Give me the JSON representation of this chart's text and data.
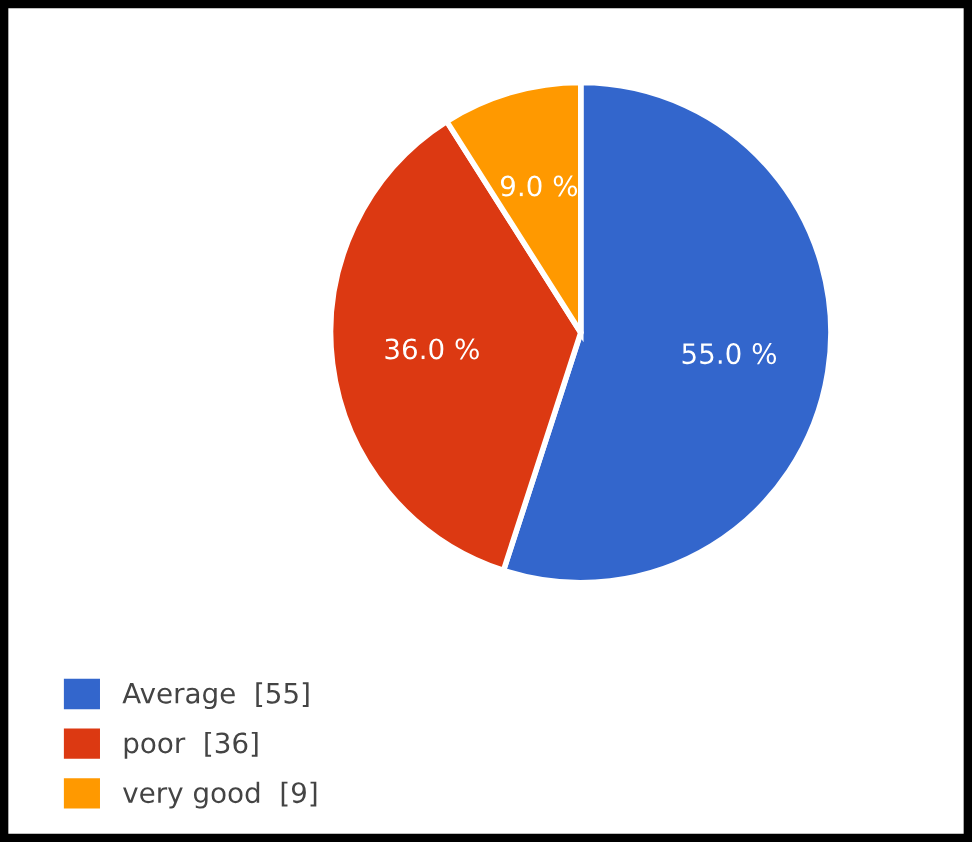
{
  "chart_data": {
    "type": "pie",
    "categories": [
      "Average  [55]",
      "poor  [36]",
      "very good  [9]"
    ],
    "values": [
      55,
      36,
      9
    ],
    "value_labels": [
      "55.0 %",
      "36.0 %",
      "9.0 %"
    ],
    "colors": [
      "#3366cc",
      "#dc3912",
      "#ff9900"
    ],
    "legend": "bottom left"
  }
}
